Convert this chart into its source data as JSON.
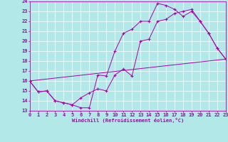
{
  "xlabel": "Windchill (Refroidissement éolien,°C)",
  "bg_color": "#b3e8e8",
  "line_color": "#aa00aa",
  "xlim": [
    0,
    23
  ],
  "ylim": [
    13,
    24
  ],
  "yticks": [
    13,
    14,
    15,
    16,
    17,
    18,
    19,
    20,
    21,
    22,
    23,
    24
  ],
  "xticks": [
    0,
    1,
    2,
    3,
    4,
    5,
    6,
    7,
    8,
    9,
    10,
    11,
    12,
    13,
    14,
    15,
    16,
    17,
    18,
    19,
    20,
    21,
    22,
    23
  ],
  "line1_x": [
    0,
    1,
    2,
    3,
    4,
    5,
    6,
    7,
    8,
    9,
    10,
    11,
    12,
    13,
    14,
    15,
    16,
    17,
    18,
    19,
    20,
    21,
    22,
    23
  ],
  "line1_y": [
    16.0,
    14.9,
    15.0,
    14.0,
    13.8,
    13.6,
    13.3,
    13.3,
    16.6,
    16.5,
    19.0,
    20.8,
    21.2,
    22.0,
    22.0,
    23.8,
    23.6,
    23.2,
    22.5,
    23.0,
    22.0,
    20.8,
    19.3,
    18.2
  ],
  "line2_x": [
    0,
    1,
    2,
    3,
    4,
    5,
    6,
    7,
    8,
    9,
    10,
    11,
    12,
    13,
    14,
    15,
    16,
    17,
    18,
    19,
    20,
    21,
    22,
    23
  ],
  "line2_y": [
    16.0,
    14.9,
    15.0,
    14.0,
    13.8,
    13.6,
    14.3,
    14.8,
    15.2,
    15.0,
    16.6,
    17.2,
    16.5,
    20.0,
    20.2,
    22.0,
    22.2,
    22.8,
    23.0,
    23.2,
    22.0,
    20.8,
    19.3,
    18.2
  ],
  "line3_x": [
    0,
    23
  ],
  "line3_y": [
    16.0,
    18.2
  ]
}
